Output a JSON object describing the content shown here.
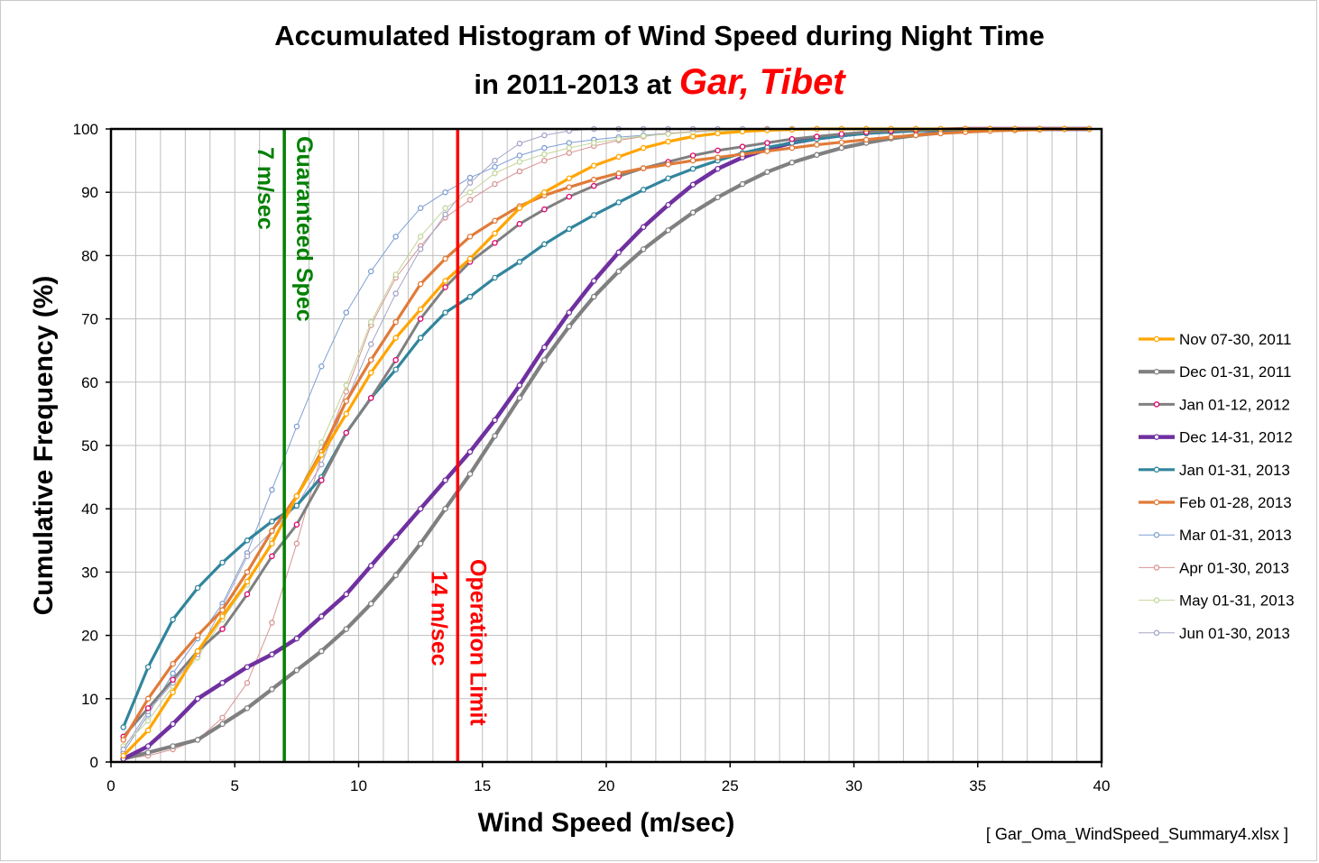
{
  "chart_data": {
    "type": "line",
    "title_line1": "Accumulated Histogram of Wind Speed during Night Time",
    "title_line2_prefix": "in 2011-2013 at ",
    "title_line2_highlight": "Gar, Tibet",
    "title_highlight_color": "#ff0000",
    "xlabel": "Wind Speed (m/sec)",
    "ylabel": "Cumulative Frequency (%)",
    "xlim": [
      0,
      40
    ],
    "ylim": [
      0,
      100
    ],
    "xticks": [
      0,
      5,
      10,
      15,
      20,
      25,
      30,
      35,
      40
    ],
    "yticks": [
      0,
      10,
      20,
      30,
      40,
      50,
      60,
      70,
      80,
      90,
      100
    ],
    "grid": true,
    "legend_position": "right",
    "source_note": "[ Gar_Oma_WindSpeed_Summary4.xlsx ]",
    "reference_lines": [
      {
        "x": 7,
        "color": "#008000",
        "label_line1": "Guaranteed Spec",
        "label_line2": "7 m/sec"
      },
      {
        "x": 14,
        "color": "#ff0000",
        "label_line1": "Operation Limit",
        "label_line2": "14 m/sec"
      }
    ],
    "x": [
      0.5,
      1.5,
      2.5,
      3.5,
      4.5,
      5.5,
      6.5,
      7.5,
      8.5,
      9.5,
      10.5,
      11.5,
      12.5,
      13.5,
      14.5,
      15.5,
      16.5,
      17.5,
      18.5,
      19.5,
      20.5,
      21.5,
      22.5,
      23.5,
      24.5,
      25.5,
      26.5,
      27.5,
      28.5,
      29.5,
      30.5,
      31.5,
      32.5,
      33.5,
      34.5,
      35.5,
      36.5,
      37.5,
      38.5,
      39.5
    ],
    "series": [
      {
        "name": "Nov 07-30, 2011",
        "color": "#ffa500",
        "width": 3.2,
        "marker": "#ffa500",
        "values": [
          1.0,
          5.0,
          11.0,
          17.5,
          23.0,
          28.5,
          34.5,
          42.0,
          48.5,
          55.0,
          61.5,
          67.0,
          71.5,
          76.0,
          79.5,
          83.5,
          87.5,
          90.0,
          92.2,
          94.2,
          95.6,
          97.0,
          98.0,
          98.8,
          99.3,
          99.6,
          99.8,
          99.9,
          100,
          100,
          100,
          100,
          100,
          100,
          100,
          100,
          100,
          100,
          100,
          100
        ]
      },
      {
        "name": "Dec 01-31, 2011",
        "color": "#808080",
        "width": 4.2,
        "marker": "#808080",
        "values": [
          0.5,
          1.5,
          2.5,
          3.5,
          6.0,
          8.5,
          11.5,
          14.5,
          17.5,
          21.0,
          25.0,
          29.5,
          34.5,
          40.0,
          45.5,
          51.5,
          57.5,
          63.5,
          68.8,
          73.5,
          77.5,
          81.0,
          84.0,
          86.8,
          89.2,
          91.3,
          93.2,
          94.7,
          95.9,
          97.0,
          97.8,
          98.5,
          99.0,
          99.4,
          99.6,
          99.8,
          99.9,
          100,
          100,
          100
        ]
      },
      {
        "name": "Jan 01-12, 2012",
        "color": "#808080",
        "width": 3.0,
        "marker": "#e0006c",
        "values": [
          4.0,
          8.5,
          13.0,
          17.5,
          21.0,
          26.5,
          32.5,
          37.5,
          44.5,
          52.0,
          57.5,
          63.5,
          70.0,
          75.0,
          79.0,
          82.0,
          85.0,
          87.3,
          89.3,
          91.0,
          92.5,
          93.8,
          94.8,
          95.8,
          96.6,
          97.2,
          97.8,
          98.4,
          98.8,
          99.2,
          99.5,
          99.7,
          99.8,
          99.9,
          100,
          100,
          100,
          100,
          100,
          100
        ]
      },
      {
        "name": "Dec 14-31, 2012",
        "color": "#7030a0",
        "width": 4.5,
        "marker": "#7030a0",
        "values": [
          0.5,
          2.5,
          6.0,
          10.0,
          12.5,
          15.0,
          17.0,
          19.5,
          23.0,
          26.5,
          31.0,
          35.5,
          40.0,
          44.5,
          49.0,
          54.0,
          59.5,
          65.5,
          71.0,
          76.0,
          80.5,
          84.5,
          88.0,
          91.2,
          93.7,
          95.5,
          96.8,
          97.8,
          98.5,
          99.0,
          99.4,
          99.6,
          99.8,
          99.9,
          100,
          100,
          100,
          100,
          100,
          100
        ]
      },
      {
        "name": "Jan 01-31, 2013",
        "color": "#31859c",
        "width": 3.2,
        "marker": "#31859c",
        "values": [
          5.5,
          15.0,
          22.5,
          27.5,
          31.5,
          35.0,
          38.0,
          40.5,
          45.0,
          52.0,
          57.5,
          62.0,
          67.0,
          71.0,
          73.5,
          76.5,
          79.0,
          81.8,
          84.2,
          86.4,
          88.4,
          90.4,
          92.2,
          93.7,
          95.0,
          96.2,
          97.1,
          97.8,
          98.4,
          98.9,
          99.3,
          99.5,
          99.7,
          99.8,
          99.9,
          100,
          100,
          100,
          100,
          100
        ]
      },
      {
        "name": "Feb 01-28, 2013",
        "color": "#e07b39",
        "width": 3.2,
        "marker": "#e07b39",
        "values": [
          3.5,
          10.0,
          15.5,
          20.0,
          24.0,
          30.0,
          36.5,
          42.0,
          49.0,
          57.0,
          63.5,
          69.5,
          75.5,
          79.5,
          83.0,
          85.5,
          87.8,
          89.5,
          90.8,
          92.0,
          93.0,
          93.8,
          94.4,
          95.0,
          95.5,
          96.0,
          96.5,
          97.0,
          97.5,
          97.9,
          98.3,
          98.7,
          99.0,
          99.3,
          99.5,
          99.7,
          99.8,
          99.9,
          100,
          100
        ]
      },
      {
        "name": "Mar 01-31, 2013",
        "color": "#7f9fd3",
        "width": 1.0,
        "marker": "#7f9fd3",
        "values": [
          1.5,
          7.5,
          14.0,
          19.5,
          25.0,
          33.0,
          43.0,
          53.0,
          62.5,
          71.0,
          77.5,
          83.0,
          87.5,
          90.0,
          92.3,
          94.0,
          95.8,
          97.0,
          97.8,
          98.3,
          98.7,
          99.0,
          99.3,
          99.5,
          99.7,
          99.8,
          99.9,
          100,
          100,
          100,
          100,
          100,
          100,
          100,
          100,
          100,
          100,
          100,
          100,
          100
        ]
      },
      {
        "name": "Apr 01-30, 2013",
        "color": "#d99594",
        "width": 1.0,
        "marker": "#d99594",
        "values": [
          0.5,
          1.0,
          2.0,
          3.5,
          7.0,
          12.5,
          22.0,
          34.5,
          48.5,
          58.5,
          69.0,
          76.5,
          81.5,
          86.0,
          88.8,
          91.3,
          93.3,
          95.0,
          96.2,
          97.3,
          98.2,
          98.8,
          99.3,
          99.6,
          99.8,
          99.9,
          100,
          100,
          100,
          100,
          100,
          100,
          100,
          100,
          100,
          100,
          100,
          100,
          100,
          100
        ]
      },
      {
        "name": "May 01-31, 2013",
        "color": "#c3d69b",
        "width": 1.0,
        "marker": "#c3d69b",
        "values": [
          2.5,
          6.5,
          12.0,
          16.5,
          22.5,
          28.0,
          35.0,
          42.0,
          50.5,
          59.5,
          69.5,
          77.0,
          83.0,
          87.5,
          90.0,
          93.0,
          94.8,
          96.0,
          97.0,
          97.8,
          98.4,
          98.9,
          99.2,
          99.5,
          99.7,
          99.8,
          99.9,
          100,
          100,
          100,
          100,
          100,
          100,
          100,
          100,
          100,
          100,
          100,
          100,
          100
        ]
      },
      {
        "name": "Jun 01-30, 2013",
        "color": "#a5a5c8",
        "width": 1.0,
        "marker": "#a5a5c8",
        "values": [
          2.0,
          8.0,
          12.5,
          17.0,
          24.5,
          32.5,
          36.5,
          40.5,
          47.0,
          57.0,
          66.0,
          74.0,
          81.0,
          86.5,
          91.5,
          95.0,
          97.7,
          99.0,
          99.7,
          100,
          100,
          100,
          100,
          100,
          100,
          100,
          100,
          100,
          100,
          100,
          100,
          100,
          100,
          100,
          100,
          100,
          100,
          100,
          100,
          100
        ]
      }
    ]
  }
}
